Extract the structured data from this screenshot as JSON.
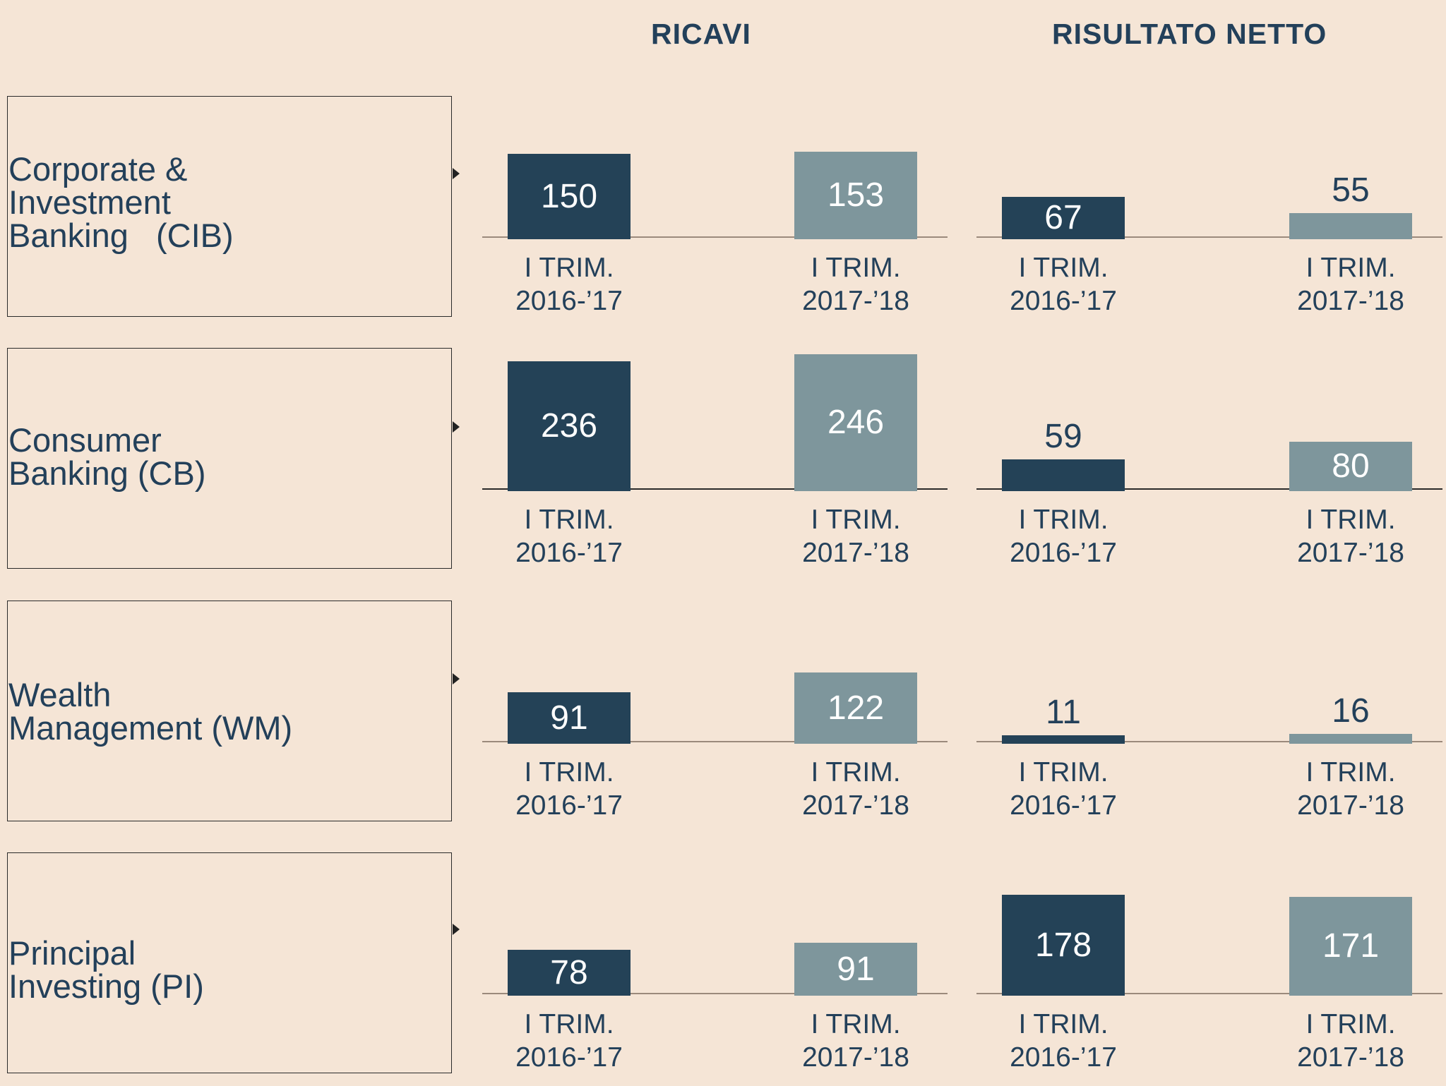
{
  "headers": {
    "ricavi": "RICAVI",
    "risultato_netto": "RISULTATO NETTO"
  },
  "periods": {
    "p1_line1": "I TRIM.",
    "p1_line2": "2016-’17",
    "p2_line1": "I TRIM.",
    "p2_line2": "2017-’18"
  },
  "segments": [
    {
      "label": "Corporate &\nInvestment\nBanking   (CIB)",
      "ricavi": [
        150,
        153
      ],
      "risultato_netto": [
        67,
        55
      ]
    },
    {
      "label": "Consumer\nBanking (CB)",
      "ricavi": [
        236,
        246
      ],
      "risultato_netto": [
        59,
        80
      ]
    },
    {
      "label": "Wealth\nManagement (WM)",
      "ricavi": [
        91,
        122
      ],
      "risultato_netto": [
        11,
        16
      ]
    },
    {
      "label": "Principal\nInvesting (PI)",
      "ricavi": [
        78,
        91
      ],
      "risultato_netto": [
        178,
        171
      ]
    }
  ],
  "colors": {
    "background": "#f5e5d6",
    "bar_2016_17": "#244257",
    "bar_2017_18": "#7e969c",
    "text": "#23405a"
  },
  "chart_data": {
    "type": "bar",
    "title": "",
    "panels": [
      "RICAVI",
      "RISULTATO NETTO"
    ],
    "categories": [
      "I TRIM. 2016-’17",
      "I TRIM. 2017-’18"
    ],
    "groups": [
      "Corporate & Investment Banking (CIB)",
      "Consumer Banking (CB)",
      "Wealth Management (WM)",
      "Principal Investing (PI)"
    ],
    "series": [
      {
        "name": "RICAVI - I TRIM. 2016-’17",
        "values": [
          150,
          236,
          91,
          78
        ]
      },
      {
        "name": "RICAVI - I TRIM. 2017-’18",
        "values": [
          153,
          246,
          122,
          91
        ]
      },
      {
        "name": "RISULTATO NETTO - I TRIM. 2016-’17",
        "values": [
          67,
          59,
          11,
          178
        ]
      },
      {
        "name": "RISULTATO NETTO - I TRIM. 2017-’18",
        "values": [
          55,
          80,
          16,
          171
        ]
      }
    ],
    "xlabel": "",
    "ylabel": "",
    "grid": false,
    "legend": "none"
  }
}
